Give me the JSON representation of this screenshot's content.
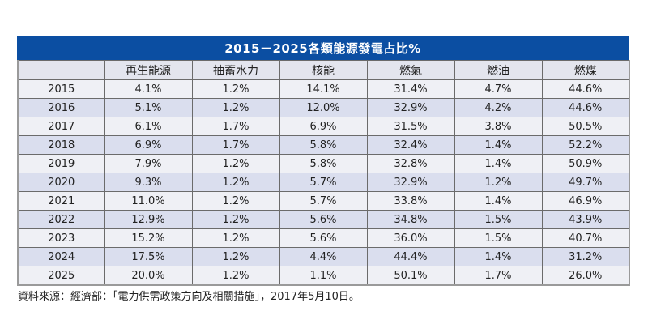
{
  "title": "2015－2025各類能源發電占比%",
  "table": {
    "corner": "",
    "columns": [
      "再生能源",
      "抽蓄水力",
      "核能",
      "燃氣",
      "燃油",
      "燃煤"
    ],
    "rows": [
      {
        "year": "2015",
        "values": [
          "4.1%",
          "1.2%",
          "14.1%",
          "31.4%",
          "4.7%",
          "44.6%"
        ]
      },
      {
        "year": "2016",
        "values": [
          "5.1%",
          "1.2%",
          "12.0%",
          "32.9%",
          "4.2%",
          "44.6%"
        ]
      },
      {
        "year": "2017",
        "values": [
          "6.1%",
          "1.7%",
          "6.9%",
          "31.5%",
          "3.8%",
          "50.5%"
        ]
      },
      {
        "year": "2018",
        "values": [
          "6.9%",
          "1.7%",
          "5.8%",
          "32.4%",
          "1.4%",
          "52.2%"
        ]
      },
      {
        "year": "2019",
        "values": [
          "7.9%",
          "1.2%",
          "5.8%",
          "32.8%",
          "1.4%",
          "50.9%"
        ]
      },
      {
        "year": "2020",
        "values": [
          "9.3%",
          "1.2%",
          "5.7%",
          "32.9%",
          "1.2%",
          "49.7%"
        ]
      },
      {
        "year": "2021",
        "values": [
          "11.0%",
          "1.2%",
          "5.7%",
          "33.8%",
          "1.4%",
          "46.9%"
        ]
      },
      {
        "year": "2022",
        "values": [
          "12.9%",
          "1.2%",
          "5.6%",
          "34.8%",
          "1.5%",
          "43.9%"
        ]
      },
      {
        "year": "2023",
        "values": [
          "15.2%",
          "1.2%",
          "5.6%",
          "36.0%",
          "1.5%",
          "40.7%"
        ]
      },
      {
        "year": "2024",
        "values": [
          "17.5%",
          "1.2%",
          "4.4%",
          "44.4%",
          "1.4%",
          "31.2%"
        ]
      },
      {
        "year": "2025",
        "values": [
          "20.0%",
          "1.2%",
          "1.1%",
          "50.1%",
          "1.7%",
          "26.0%"
        ]
      }
    ]
  },
  "source": "資料來源：經濟部：「電力供需政策方向及相關措施」，2017年5月10日。",
  "colors": {
    "title_bar": "#0b4ea2",
    "header_row": "#e3e5ee",
    "row_light": "#eff0f5",
    "row_dark": "#dadeee"
  }
}
